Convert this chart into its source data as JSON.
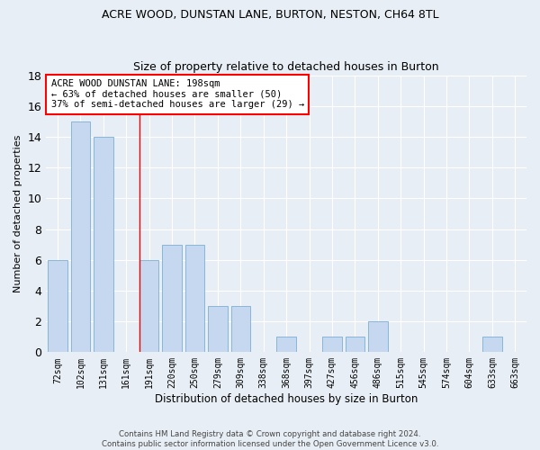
{
  "title": "ACRE WOOD, DUNSTAN LANE, BURTON, NESTON, CH64 8TL",
  "subtitle": "Size of property relative to detached houses in Burton",
  "xlabel": "Distribution of detached houses by size in Burton",
  "ylabel": "Number of detached properties",
  "categories": [
    "72sqm",
    "102sqm",
    "131sqm",
    "161sqm",
    "191sqm",
    "220sqm",
    "250sqm",
    "279sqm",
    "309sqm",
    "338sqm",
    "368sqm",
    "397sqm",
    "427sqm",
    "456sqm",
    "486sqm",
    "515sqm",
    "545sqm",
    "574sqm",
    "604sqm",
    "633sqm",
    "663sqm"
  ],
  "values": [
    6,
    15,
    14,
    0,
    6,
    7,
    7,
    3,
    3,
    0,
    1,
    0,
    1,
    1,
    2,
    0,
    0,
    0,
    0,
    1,
    0
  ],
  "bar_color": "#c5d8ef",
  "bar_edgecolor": "#7bafd4",
  "redline_x": 3.6,
  "redline_label": "ACRE WOOD DUNSTAN LANE: 198sqm",
  "annotation_line1": "← 63% of detached houses are smaller (50)",
  "annotation_line2": "37% of semi-detached houses are larger (29) →",
  "ylim": [
    0,
    18
  ],
  "yticks": [
    0,
    2,
    4,
    6,
    8,
    10,
    12,
    14,
    16,
    18
  ],
  "footer1": "Contains HM Land Registry data © Crown copyright and database right 2024.",
  "footer2": "Contains public sector information licensed under the Open Government Licence v3.0.",
  "bg_color": "#e8eef5",
  "title_fontsize": 9,
  "subtitle_fontsize": 9
}
